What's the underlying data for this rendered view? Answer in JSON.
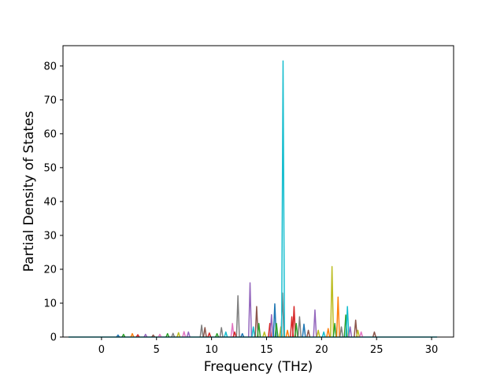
{
  "chart_data": {
    "type": "line",
    "title": "",
    "xlabel": "Frequency (THz)",
    "ylabel": "Partial Density of States",
    "xlim": [
      -3.5,
      32.0
    ],
    "ylim": [
      0,
      86.0
    ],
    "xticks": [
      0,
      5,
      10,
      15,
      20,
      25,
      30
    ],
    "yticks": [
      0,
      10,
      20,
      30,
      40,
      50,
      60,
      70,
      80
    ],
    "grid": false,
    "legend": "none",
    "colors": [
      "#1f77b4",
      "#ff7f0e",
      "#2ca02c",
      "#d62728",
      "#9467bd",
      "#8c564b",
      "#e377c2",
      "#7f7f7f",
      "#bcbd22",
      "#17becf"
    ],
    "baseline_x": [
      -3.0,
      30.5
    ],
    "peaks": [
      {
        "x": 1.5,
        "y": 0.6,
        "c": 0
      },
      {
        "x": 2.0,
        "y": 0.8,
        "c": 2
      },
      {
        "x": 2.8,
        "y": 1.0,
        "c": 1
      },
      {
        "x": 3.3,
        "y": 0.7,
        "c": 3
      },
      {
        "x": 4.0,
        "y": 0.8,
        "c": 4
      },
      {
        "x": 4.7,
        "y": 0.6,
        "c": 5
      },
      {
        "x": 5.3,
        "y": 0.8,
        "c": 6
      },
      {
        "x": 6.0,
        "y": 1.0,
        "c": 2
      },
      {
        "x": 6.5,
        "y": 1.1,
        "c": 7
      },
      {
        "x": 7.0,
        "y": 1.3,
        "c": 8
      },
      {
        "x": 7.5,
        "y": 1.6,
        "c": 6
      },
      {
        "x": 7.9,
        "y": 1.5,
        "c": 4
      },
      {
        "x": 9.1,
        "y": 3.5,
        "c": 7
      },
      {
        "x": 9.4,
        "y": 2.8,
        "c": 5
      },
      {
        "x": 9.8,
        "y": 1.2,
        "c": 3
      },
      {
        "x": 10.5,
        "y": 1.0,
        "c": 2
      },
      {
        "x": 10.9,
        "y": 2.8,
        "c": 7
      },
      {
        "x": 11.3,
        "y": 1.5,
        "c": 9
      },
      {
        "x": 11.9,
        "y": 4.0,
        "c": 6
      },
      {
        "x": 12.1,
        "y": 1.5,
        "c": 3
      },
      {
        "x": 12.4,
        "y": 12.2,
        "c": 7
      },
      {
        "x": 12.8,
        "y": 1.0,
        "c": 0
      },
      {
        "x": 13.5,
        "y": 16.0,
        "c": 4
      },
      {
        "x": 13.8,
        "y": 3.0,
        "c": 9
      },
      {
        "x": 14.1,
        "y": 9.0,
        "c": 5
      },
      {
        "x": 14.3,
        "y": 4.0,
        "c": 2
      },
      {
        "x": 14.8,
        "y": 1.5,
        "c": 8
      },
      {
        "x": 15.3,
        "y": 4.0,
        "c": 3
      },
      {
        "x": 15.45,
        "y": 6.6,
        "c": 4
      },
      {
        "x": 15.75,
        "y": 9.8,
        "c": 0
      },
      {
        "x": 15.9,
        "y": 4.0,
        "c": 2
      },
      {
        "x": 16.3,
        "y": 3.0,
        "c": 8
      },
      {
        "x": 16.45,
        "y": 13.0,
        "c": 7
      },
      {
        "x": 16.5,
        "y": 81.5,
        "c": 9
      },
      {
        "x": 16.9,
        "y": 2.0,
        "c": 1
      },
      {
        "x": 17.3,
        "y": 6.0,
        "c": 3
      },
      {
        "x": 17.5,
        "y": 9.0,
        "c": 3
      },
      {
        "x": 17.7,
        "y": 4.0,
        "c": 2
      },
      {
        "x": 18.0,
        "y": 6.0,
        "c": 7
      },
      {
        "x": 18.4,
        "y": 3.8,
        "c": 0
      },
      {
        "x": 18.8,
        "y": 2.0,
        "c": 5
      },
      {
        "x": 19.4,
        "y": 8.0,
        "c": 4
      },
      {
        "x": 19.7,
        "y": 2.0,
        "c": 8
      },
      {
        "x": 20.2,
        "y": 1.5,
        "c": 9
      },
      {
        "x": 20.6,
        "y": 2.5,
        "c": 1
      },
      {
        "x": 20.95,
        "y": 20.8,
        "c": 8
      },
      {
        "x": 21.2,
        "y": 4.0,
        "c": 2
      },
      {
        "x": 21.5,
        "y": 11.8,
        "c": 1
      },
      {
        "x": 21.8,
        "y": 3.0,
        "c": 7
      },
      {
        "x": 22.2,
        "y": 6.5,
        "c": 2
      },
      {
        "x": 22.35,
        "y": 9.0,
        "c": 9
      },
      {
        "x": 22.6,
        "y": 3.0,
        "c": 4
      },
      {
        "x": 23.1,
        "y": 5.0,
        "c": 5
      },
      {
        "x": 23.3,
        "y": 2.0,
        "c": 8
      },
      {
        "x": 23.6,
        "y": 1.5,
        "c": 6
      },
      {
        "x": 24.8,
        "y": 1.5,
        "c": 5
      }
    ]
  }
}
